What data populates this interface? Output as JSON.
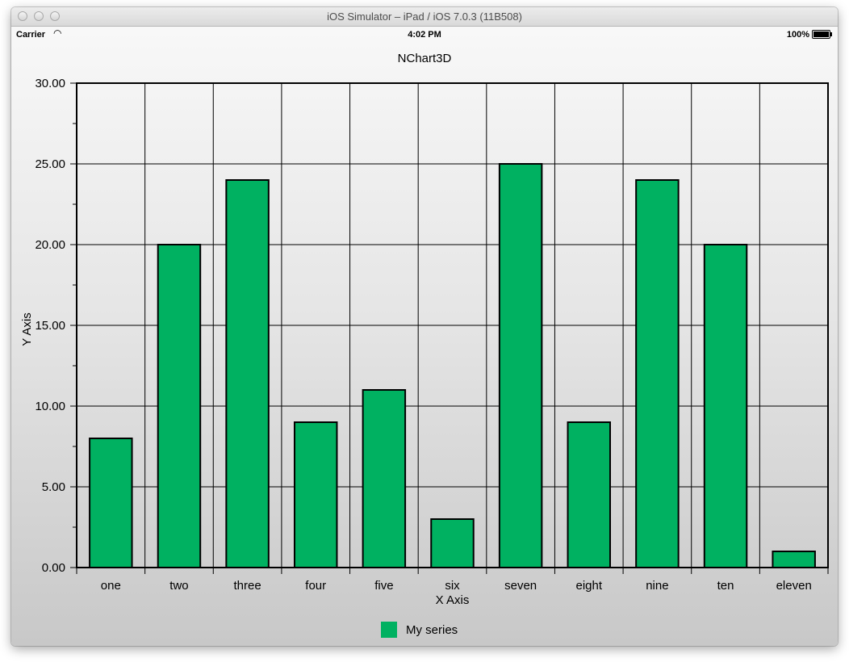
{
  "window": {
    "title": "iOS Simulator – iPad / iOS 7.0.3 (11B508)"
  },
  "status_bar": {
    "carrier": "Carrier",
    "wifi_icon": "wifi-icon",
    "time": "4:02 PM",
    "battery_percent": "100%",
    "battery_icon": "battery-icon"
  },
  "chart_data": {
    "type": "bar",
    "title": "NChart3D",
    "xlabel": "X Axis",
    "ylabel": "Y Axis",
    "categories": [
      "one",
      "two",
      "three",
      "four",
      "five",
      "six",
      "seven",
      "eight",
      "nine",
      "ten",
      "eleven"
    ],
    "series": [
      {
        "name": "My series",
        "values": [
          8,
          20,
          24,
          9,
          11,
          3,
          25,
          9,
          24,
          20,
          1
        ],
        "color": "#00b161"
      }
    ],
    "ylim": [
      0,
      30
    ],
    "yticks": [
      "0.00",
      "5.00",
      "10.00",
      "15.00",
      "20.00",
      "25.00",
      "30.00"
    ],
    "grid": true,
    "legend_position": "bottom-center"
  }
}
